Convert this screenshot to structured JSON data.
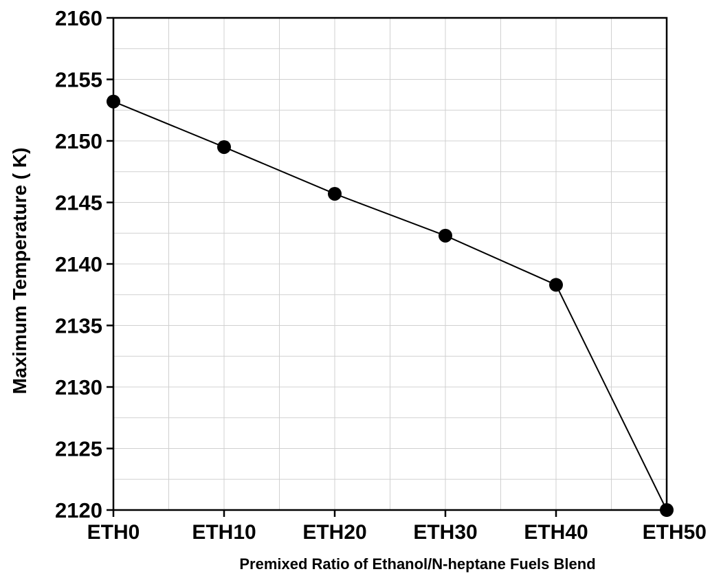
{
  "chart_data": {
    "type": "line",
    "title": "",
    "xlabel": "Premixed Ratio of Ethanol/N-heptane Fuels Blend",
    "ylabel": "Maximum Temperature ( K)",
    "categories": [
      "ETH0",
      "ETH10",
      "ETH20",
      "ETH30",
      "ETH40",
      "ETH50"
    ],
    "series": [
      {
        "values": [
          2153.2,
          2149.5,
          2145.7,
          2142.3,
          2138.3,
          2120.0
        ]
      }
    ],
    "ylim": [
      2120,
      2160
    ],
    "yticks": [
      2120,
      2125,
      2130,
      2135,
      2140,
      2145,
      2150,
      2155,
      2160
    ],
    "grid": true,
    "legend": "none",
    "colors": {
      "line": "#000000",
      "marker": "#000000",
      "grid": "#d0d0d0"
    }
  }
}
